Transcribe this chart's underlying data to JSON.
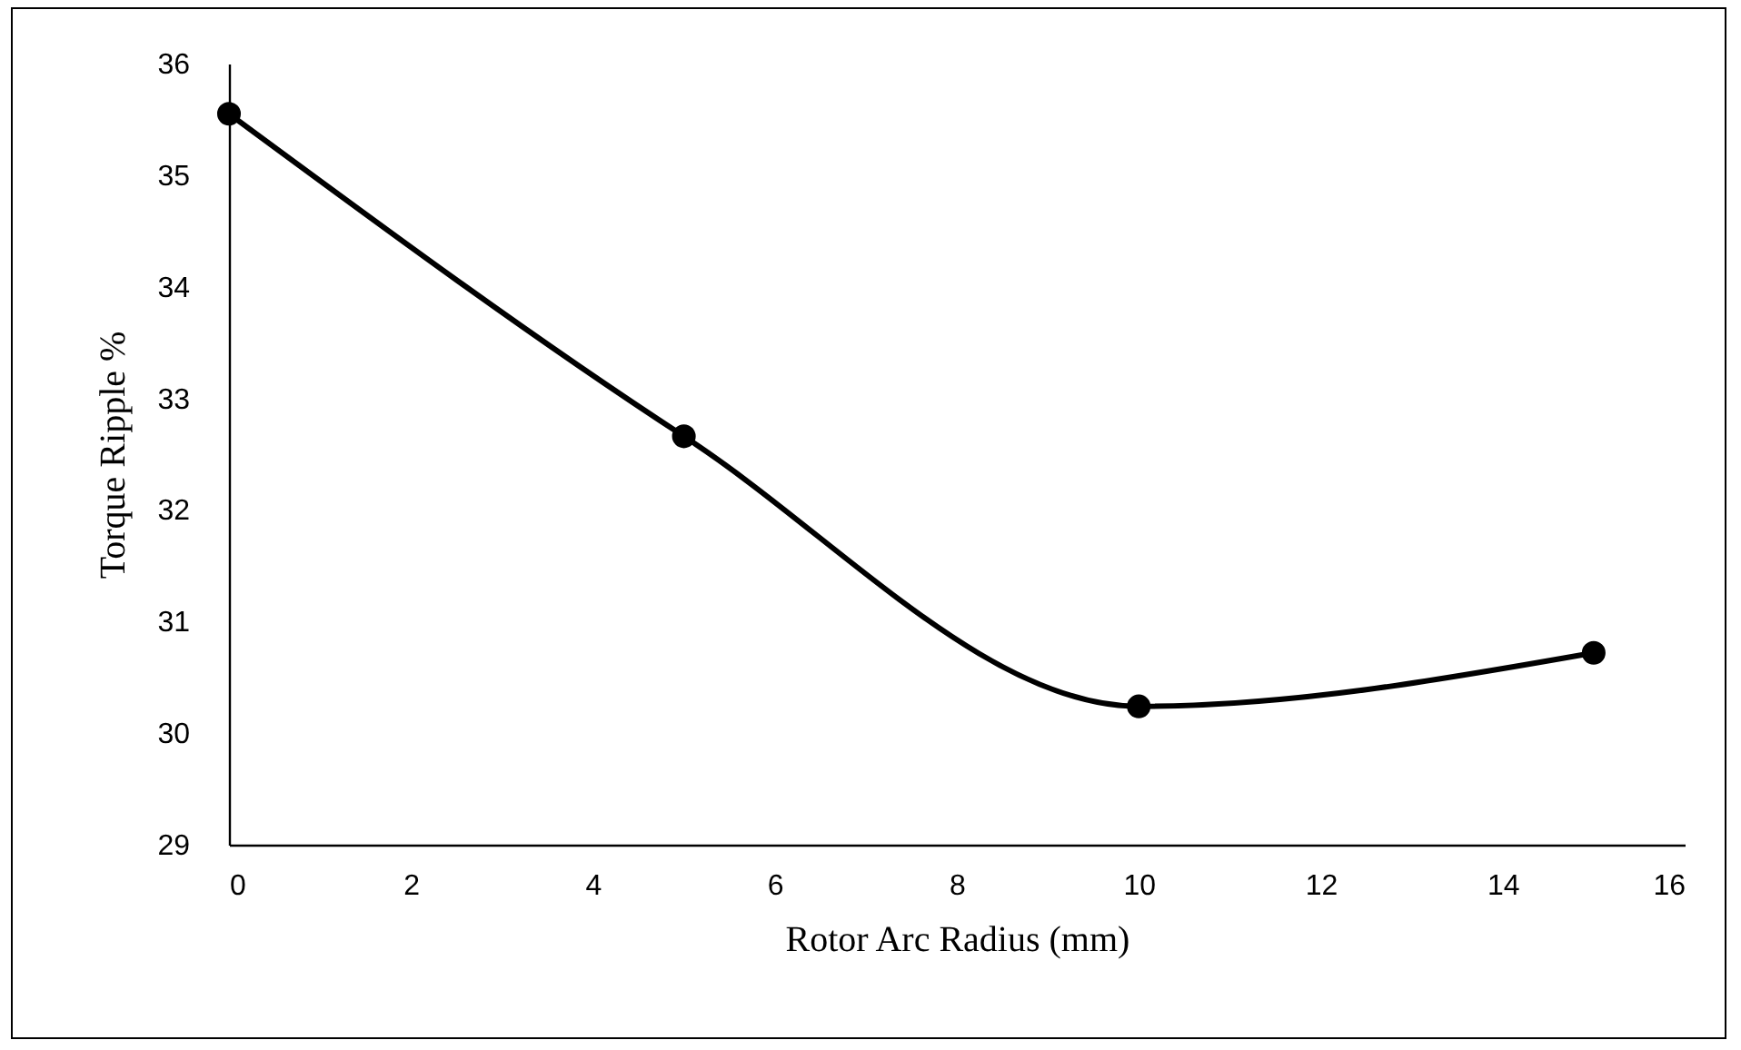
{
  "chart_data": {
    "type": "line",
    "xlabel": "Rotor Arc Radius (mm)",
    "ylabel": "Torque Ripple %",
    "x": [
      0,
      5,
      10,
      15
    ],
    "series": [
      {
        "color": "#000000",
        "values": [
          35.55,
          32.66,
          30.24,
          30.72
        ]
      }
    ],
    "xlim": [
      0,
      16
    ],
    "xticks": [
      0,
      2,
      4,
      6,
      8,
      10,
      12,
      14,
      16
    ],
    "ylim": [
      29,
      36
    ],
    "yticks": [
      29,
      30,
      31,
      32,
      33,
      34,
      35,
      36
    ],
    "grid": false,
    "marker": "circle",
    "line_style": "solid"
  }
}
